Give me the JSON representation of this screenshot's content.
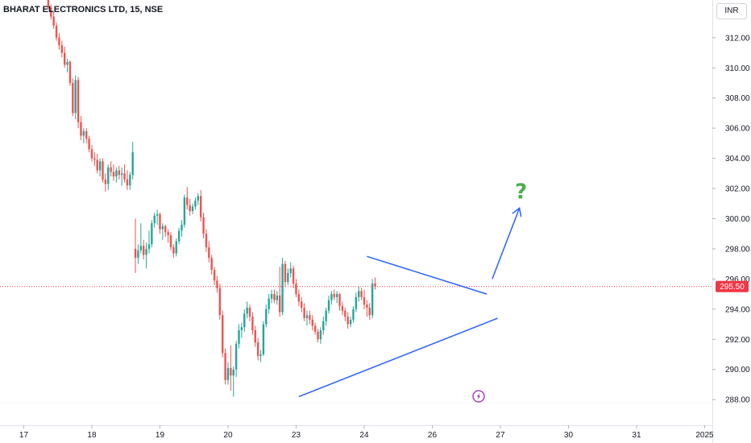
{
  "header": {
    "title": "BHARAT ELECTRONICS LTD, 15, NSE",
    "currency": "INR"
  },
  "colors": {
    "up": "#26a69a",
    "down": "#ef5350",
    "pattern": "#2962ff",
    "price_line": "#f23645",
    "question": "#4caf50",
    "lightning": "#9c27b0"
  },
  "annotation": {
    "question_mark": "?",
    "lightning_icon": "lightning-icon"
  },
  "chart_data": {
    "type": "candlestick",
    "title": "BHARAT ELECTRONICS LTD, 15, NSE",
    "ylabel": "",
    "xlabel": "",
    "ylim": [
      286.3,
      314.5
    ],
    "y_ticks": [
      288.0,
      290.0,
      292.0,
      294.0,
      296.0,
      298.0,
      300.0,
      302.0,
      304.0,
      306.0,
      308.0,
      310.0,
      312.0
    ],
    "x_ticks": [
      {
        "label": "17",
        "bar": -9
      },
      {
        "label": "18",
        "bar": 16
      },
      {
        "label": "19",
        "bar": 41
      },
      {
        "label": "20",
        "bar": 66
      },
      {
        "label": "23",
        "bar": 91
      },
      {
        "label": "24",
        "bar": 116
      },
      {
        "label": "26",
        "bar": 141
      },
      {
        "label": "27",
        "bar": 166
      },
      {
        "label": "30",
        "bar": 191
      },
      {
        "label": "31",
        "bar": 216
      },
      {
        "label": "2025",
        "bar": 241
      }
    ],
    "current_price": 295.5,
    "current_price_label": "295.50",
    "candles": [
      [
        314.5,
        314.8,
        313.9,
        314.0
      ],
      [
        314.0,
        314.2,
        313.2,
        313.4
      ],
      [
        313.4,
        313.7,
        312.6,
        312.8
      ],
      [
        312.8,
        313.0,
        311.8,
        312.0
      ],
      [
        312.0,
        312.3,
        311.2,
        311.5
      ],
      [
        311.5,
        311.8,
        310.7,
        311.0
      ],
      [
        311.0,
        311.4,
        310.0,
        310.2
      ],
      [
        310.2,
        310.6,
        309.7,
        310.4
      ],
      [
        310.4,
        310.5,
        308.8,
        309.0
      ],
      [
        309.0,
        309.3,
        306.8,
        307.0
      ],
      [
        307.0,
        309.5,
        306.6,
        309.2
      ],
      [
        309.2,
        309.4,
        306.0,
        306.4
      ],
      [
        306.4,
        306.8,
        305.2,
        305.5
      ],
      [
        305.5,
        306.0,
        305.0,
        305.8
      ],
      [
        305.8,
        306.0,
        305.0,
        305.3
      ],
      [
        305.3,
        305.5,
        304.4,
        304.6
      ],
      [
        304.6,
        304.9,
        303.8,
        304.0
      ],
      [
        304.0,
        304.4,
        303.5,
        303.9
      ],
      [
        303.9,
        304.3,
        303.0,
        303.2
      ],
      [
        303.2,
        304.0,
        302.8,
        303.8
      ],
      [
        303.8,
        304.0,
        302.4,
        302.6
      ],
      [
        302.6,
        303.0,
        301.8,
        302.3
      ],
      [
        302.3,
        303.6,
        301.9,
        303.4
      ],
      [
        303.4,
        303.8,
        302.8,
        303.1
      ],
      [
        303.1,
        303.6,
        302.5,
        302.8
      ],
      [
        302.8,
        303.4,
        302.4,
        303.2
      ],
      [
        303.2,
        303.5,
        302.6,
        302.9
      ],
      [
        302.9,
        303.4,
        302.2,
        303.0
      ],
      [
        303.0,
        303.6,
        302.4,
        302.6
      ],
      [
        302.6,
        303.2,
        301.9,
        302.2
      ],
      [
        302.2,
        303.1,
        301.9,
        302.9
      ],
      [
        302.9,
        305.1,
        302.6,
        304.4
      ],
      [
        298.0,
        300.0,
        296.4,
        297.4
      ],
      [
        297.4,
        298.3,
        297.0,
        297.9
      ],
      [
        297.9,
        299.7,
        297.7,
        298.2
      ],
      [
        298.2,
        298.6,
        297.3,
        297.6
      ],
      [
        297.6,
        298.4,
        296.7,
        298.0
      ],
      [
        298.0,
        299.2,
        297.7,
        298.3
      ],
      [
        298.3,
        299.9,
        298.1,
        299.7
      ],
      [
        299.7,
        300.4,
        299.4,
        300.2
      ],
      [
        300.2,
        300.6,
        299.6,
        300.3
      ],
      [
        300.3,
        300.4,
        299.0,
        299.3
      ],
      [
        299.3,
        299.7,
        298.6,
        299.5
      ],
      [
        299.5,
        299.6,
        298.8,
        299.1
      ],
      [
        299.1,
        299.3,
        298.4,
        298.9
      ],
      [
        298.9,
        299.1,
        297.9,
        298.1
      ],
      [
        298.1,
        298.3,
        297.4,
        297.7
      ],
      [
        297.7,
        298.7,
        297.5,
        298.5
      ],
      [
        298.5,
        299.4,
        298.3,
        299.2
      ],
      [
        299.2,
        299.9,
        298.8,
        299.6
      ],
      [
        299.6,
        301.6,
        299.4,
        301.4
      ],
      [
        301.4,
        302.1,
        300.6,
        300.9
      ],
      [
        300.9,
        301.3,
        300.2,
        300.5
      ],
      [
        300.5,
        301.0,
        300.3,
        300.8
      ],
      [
        300.8,
        301.4,
        300.6,
        301.2
      ],
      [
        301.2,
        301.7,
        300.9,
        301.5
      ],
      [
        301.5,
        301.9,
        299.8,
        300.1
      ],
      [
        300.1,
        300.4,
        298.7,
        299.0
      ],
      [
        299.0,
        299.3,
        297.8,
        298.1
      ],
      [
        298.1,
        298.5,
        297.1,
        297.4
      ],
      [
        297.4,
        297.6,
        296.3,
        296.6
      ],
      [
        296.6,
        296.8,
        295.6,
        295.9
      ],
      [
        295.9,
        296.2,
        295.1,
        295.4
      ],
      [
        295.4,
        295.7,
        293.3,
        293.6
      ],
      [
        293.6,
        293.9,
        290.8,
        291.1
      ],
      [
        291.1,
        291.4,
        289.0,
        289.3
      ],
      [
        289.3,
        290.5,
        289.0,
        290.1
      ],
      [
        290.1,
        291.6,
        288.6,
        289.6
      ],
      [
        289.6,
        290.2,
        288.2,
        290.0
      ],
      [
        290.0,
        291.9,
        289.5,
        291.7
      ],
      [
        291.7,
        293.0,
        291.4,
        292.6
      ],
      [
        292.6,
        293.1,
        292.1,
        292.8
      ],
      [
        292.8,
        294.0,
        292.5,
        293.7
      ],
      [
        293.7,
        294.5,
        293.4,
        294.1
      ],
      [
        294.1,
        294.3,
        293.2,
        293.5
      ],
      [
        293.5,
        293.8,
        292.3,
        292.6
      ],
      [
        292.6,
        292.9,
        291.5,
        291.8
      ],
      [
        291.8,
        292.1,
        290.6,
        290.9
      ],
      [
        290.9,
        291.3,
        290.5,
        291.0
      ],
      [
        291.0,
        293.2,
        290.9,
        293.0
      ],
      [
        293.0,
        294.3,
        292.8,
        294.0
      ],
      [
        294.0,
        295.0,
        293.7,
        294.7
      ],
      [
        294.7,
        295.3,
        294.4,
        295.0
      ],
      [
        295.0,
        295.3,
        294.4,
        294.6
      ],
      [
        294.6,
        295.2,
        294.3,
        294.9
      ],
      [
        294.9,
        296.8,
        293.5,
        293.8
      ],
      [
        293.8,
        297.4,
        293.6,
        297.0
      ],
      [
        297.0,
        297.2,
        295.5,
        295.8
      ],
      [
        295.8,
        296.7,
        295.6,
        296.4
      ],
      [
        296.4,
        297.1,
        296.1,
        296.7
      ],
      [
        296.7,
        296.9,
        295.4,
        295.7
      ],
      [
        295.7,
        296.0,
        294.8,
        295.0
      ],
      [
        295.0,
        295.3,
        294.2,
        294.5
      ],
      [
        294.5,
        294.8,
        293.8,
        294.1
      ],
      [
        294.1,
        294.4,
        293.2,
        293.4
      ],
      [
        293.4,
        293.9,
        292.9,
        293.6
      ],
      [
        293.6,
        293.9,
        293.0,
        293.3
      ],
      [
        293.3,
        293.6,
        292.6,
        292.9
      ],
      [
        292.9,
        293.1,
        292.3,
        292.5
      ],
      [
        292.5,
        292.7,
        291.8,
        292.0
      ],
      [
        292.0,
        292.8,
        291.7,
        292.6
      ],
      [
        292.6,
        293.5,
        292.3,
        293.2
      ],
      [
        293.2,
        294.1,
        292.9,
        293.9
      ],
      [
        293.9,
        294.9,
        293.7,
        294.6
      ],
      [
        294.6,
        295.2,
        294.3,
        295.0
      ],
      [
        295.0,
        295.3,
        294.6,
        294.8
      ],
      [
        294.8,
        295.2,
        294.4,
        295.0
      ],
      [
        295.0,
        295.1,
        293.9,
        294.2
      ],
      [
        294.2,
        294.5,
        293.6,
        293.9
      ],
      [
        293.9,
        294.1,
        293.2,
        293.5
      ],
      [
        293.5,
        293.8,
        292.7,
        293.0
      ],
      [
        293.0,
        293.5,
        292.8,
        293.3
      ],
      [
        293.3,
        294.2,
        293.1,
        294.0
      ],
      [
        294.0,
        295.1,
        293.8,
        294.8
      ],
      [
        294.8,
        295.5,
        294.5,
        295.2
      ],
      [
        295.2,
        295.4,
        294.6,
        294.8
      ],
      [
        294.8,
        295.3,
        294.0,
        294.3
      ],
      [
        294.3,
        294.6,
        293.5,
        294.1
      ],
      [
        294.1,
        294.4,
        293.3,
        293.6
      ],
      [
        293.6,
        296.0,
        293.4,
        295.7
      ],
      [
        295.7,
        296.1,
        295.3,
        295.5
      ]
    ],
    "triangle": {
      "upper": [
        [
          117,
          297.5
        ],
        [
          161,
          295.0
        ]
      ],
      "lower": [
        [
          92,
          288.2
        ],
        [
          165,
          293.4
        ]
      ]
    },
    "arrow": [
      [
        163,
        296.0
      ],
      [
        173,
        300.7
      ]
    ]
  }
}
